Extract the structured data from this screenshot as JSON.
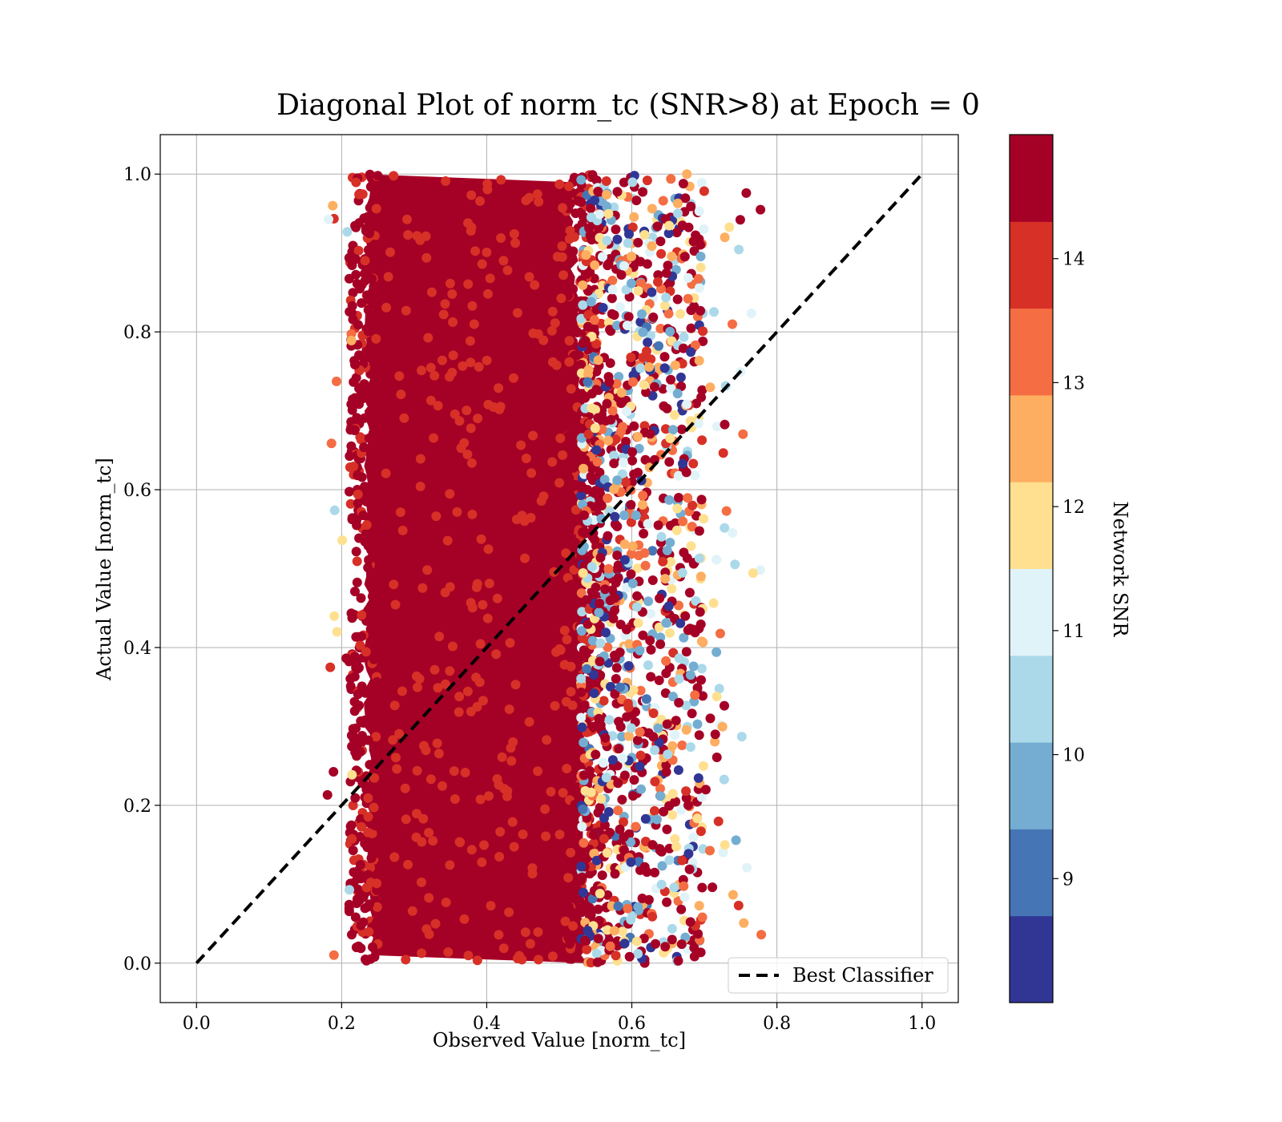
{
  "chart_data": {
    "type": "scatter",
    "title": "Diagonal Plot of norm_tc (SNR>8) at Epoch = 0",
    "xlabel": "Observed Value [norm_tc]",
    "ylabel": "Actual Value [norm_tc]",
    "xlim": [
      -0.05,
      1.05
    ],
    "ylim": [
      -0.05,
      1.05
    ],
    "xticks": [
      0.0,
      0.2,
      0.4,
      0.6,
      0.8,
      1.0
    ],
    "yticks": [
      0.0,
      0.2,
      0.4,
      0.6,
      0.8,
      1.0
    ],
    "xtick_labels": [
      "0.0",
      "0.2",
      "0.4",
      "0.6",
      "0.8",
      "1.0"
    ],
    "ytick_labels": [
      "0.0",
      "0.2",
      "0.4",
      "0.6",
      "0.8",
      "1.0"
    ],
    "grid": true,
    "reference_line": {
      "label": "Best Classifier",
      "x": [
        0.0,
        1.0
      ],
      "y": [
        0.0,
        1.0
      ],
      "style": "dashed",
      "color": "#000000"
    },
    "legend": {
      "placement": "lower-right",
      "entries": [
        "Best Classifier"
      ]
    },
    "scatter_summary": {
      "description_series": "predicted vs actual norm_tc colored by network SNR",
      "bulk_x_range": [
        0.22,
        0.55
      ],
      "spread_x_range": [
        0.55,
        0.73
      ],
      "outlier_x_range": [
        0.18,
        0.78
      ],
      "y_range": [
        0.0,
        1.0
      ],
      "dominant_snr": 14.5
    },
    "colorbar": {
      "label": "Network SNR",
      "range": [
        8.0,
        15.0
      ],
      "boundaries": [
        8.0,
        8.7,
        9.4,
        10.1,
        10.8,
        11.5,
        12.2,
        12.9,
        13.6,
        14.3,
        15.0
      ],
      "ticks": [
        9,
        10,
        11,
        12,
        13,
        14
      ],
      "tick_labels": [
        "9",
        "10",
        "11",
        "12",
        "13",
        "14"
      ],
      "colors": [
        "#313695",
        "#4575b4",
        "#74add1",
        "#abd9e9",
        "#e0f3f8",
        "#fee090",
        "#fdae61",
        "#f46d43",
        "#d73027",
        "#a50026"
      ]
    }
  }
}
